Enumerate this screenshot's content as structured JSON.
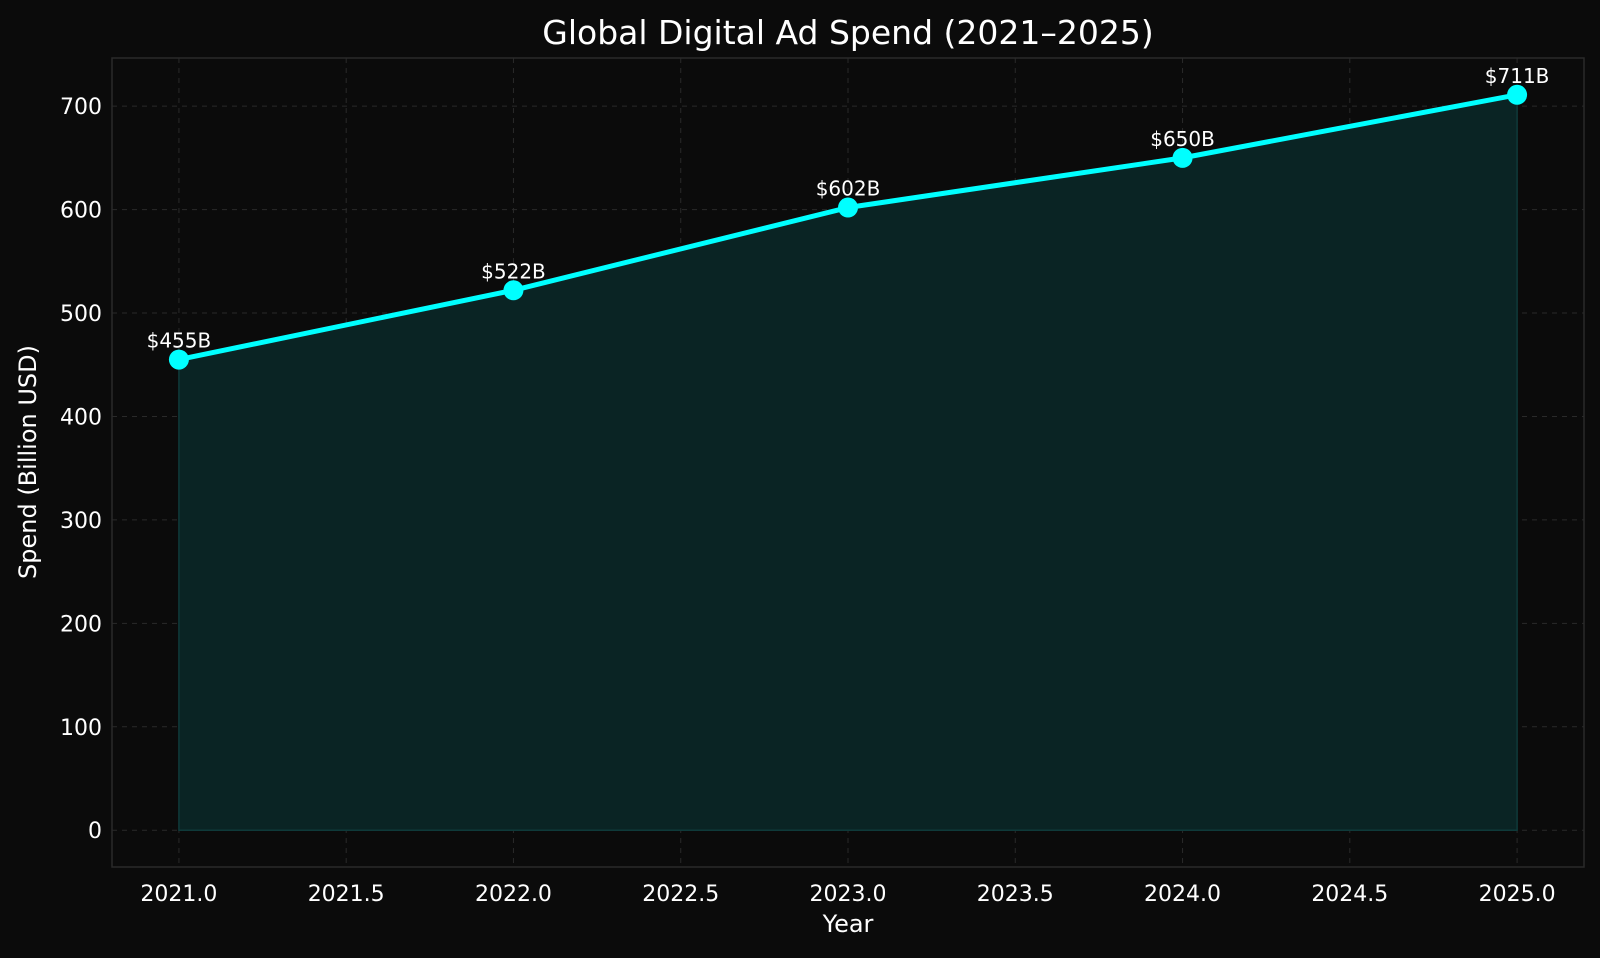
{
  "chart_data": {
    "type": "area",
    "title": "Global Digital Ad Spend (2021–2025)",
    "xlabel": "Year",
    "ylabel": "Spend (Billion USD)",
    "x": [
      2021,
      2022,
      2023,
      2024,
      2025
    ],
    "values": [
      455,
      522,
      602,
      650,
      711
    ],
    "data_labels": [
      "$455B",
      "$522B",
      "$602B",
      "$650B",
      "$711B"
    ],
    "xlim": [
      2020.8,
      2025.2
    ],
    "ylim": [
      -35.55,
      746.55
    ],
    "xticks": [
      2021.0,
      2021.5,
      2022.0,
      2022.5,
      2023.0,
      2023.5,
      2024.0,
      2024.5,
      2025.0
    ],
    "xtick_labels": [
      "2021.0",
      "2021.5",
      "2022.0",
      "2022.5",
      "2023.0",
      "2023.5",
      "2024.0",
      "2024.5",
      "2025.0"
    ],
    "yticks": [
      0,
      100,
      200,
      300,
      400,
      500,
      600,
      700
    ],
    "ytick_labels": [
      "0",
      "100",
      "200",
      "300",
      "400",
      "500",
      "600",
      "700"
    ],
    "grid": true,
    "colors": {
      "line": "#00ffff",
      "fill": "#0a2424",
      "background": "#0b0b0b",
      "grid": "#2a2a2a",
      "text": "#ffffff"
    }
  }
}
